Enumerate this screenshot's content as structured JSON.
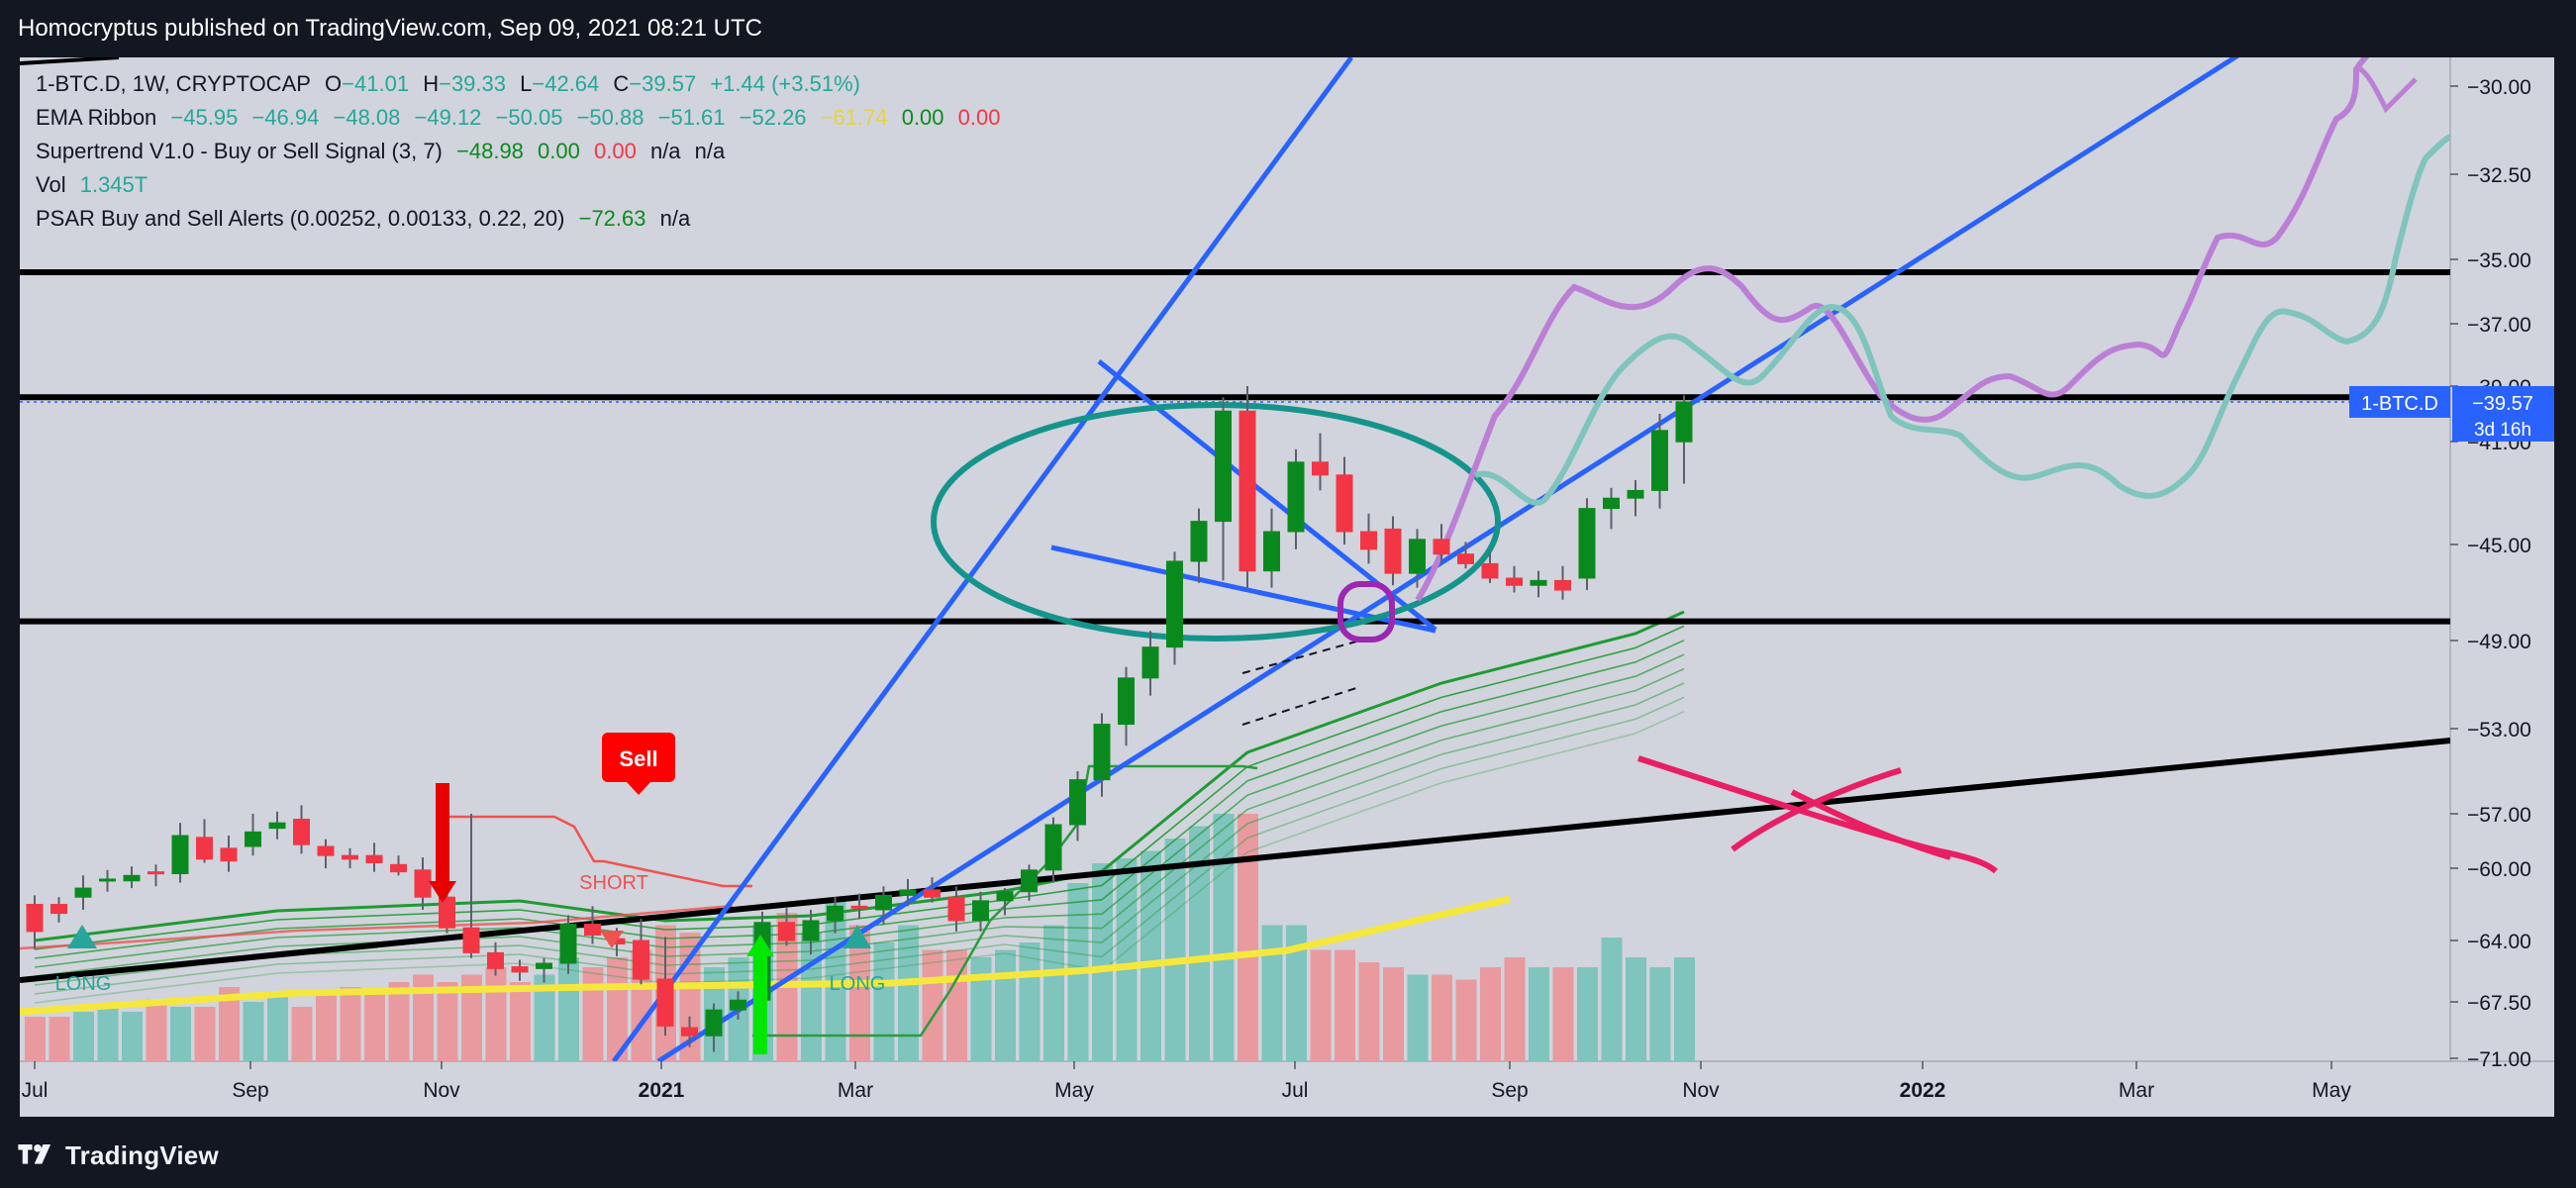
{
  "header": {
    "publisher_text": "Homocryptus published on TradingView.com, Sep 09, 2021 08:21 UTC"
  },
  "footer": {
    "brand": "TradingView"
  },
  "colors": {
    "chart_bg": "#d1d4dc",
    "frame_bg": "#131722",
    "candle_up": "#0a8a1e",
    "candle_down": "#f23645",
    "volume_up": "#7fc4bd",
    "volume_down": "#e89a9f",
    "trendline": "#2962ff",
    "level": "#000000",
    "ellipse": "#15948c",
    "ribbon": "#1f9b32",
    "ema_long": "#f5e83c",
    "projection_purple": "#bb7fd6",
    "projection_teal": "#7fc4bd",
    "cross": "#e91e63",
    "price_label_bg": "#2962ff"
  },
  "legend": {
    "symbol": {
      "name": "1-BTC.D, 1W, CRYPTOCAP",
      "o_label": "O",
      "o": "−41.01",
      "h_label": "H",
      "h": "−39.33",
      "l_label": "L",
      "l": "−42.64",
      "c_label": "C",
      "c": "−39.57",
      "change": "+1.44 (+3.51%)"
    },
    "ema_ribbon": {
      "name": "EMA Ribbon",
      "values": [
        "−45.95",
        "−46.94",
        "−48.08",
        "−49.12",
        "−50.05",
        "−50.88",
        "−51.61",
        "−52.26",
        "−61.74",
        "0.00",
        "0.00"
      ]
    },
    "supertrend": {
      "name": "Supertrend V1.0 - Buy or Sell Signal (3, 7)",
      "v1": "−48.98",
      "v2": "0.00",
      "v3": "0.00",
      "v4": "n/a",
      "v5": "n/a"
    },
    "vol": {
      "name": "Vol",
      "value": "1.345T"
    },
    "psar": {
      "name": "PSAR Buy and Sell Alerts (0.00252, 0.00133, 0.22, 20)",
      "value": "−72.63",
      "extra": "n/a"
    }
  },
  "price_label": {
    "symbol": "1-BTC.D",
    "value": "−39.57",
    "countdown": "3d 16h"
  },
  "annotations": {
    "sell": "Sell",
    "short": "SHORT",
    "long_1": "LONG",
    "long_2": "LONG"
  },
  "chart_data": {
    "type": "candlestick",
    "timeframe": "1W",
    "y_scale": "inverted (negative BTC dominance; more negative values plotted lower)",
    "grid": false,
    "x_ticks": [
      "Jul",
      "Sep",
      "Nov",
      "2021",
      "Mar",
      "May",
      "Jul",
      "Sep",
      "Nov",
      "2022",
      "Mar",
      "May"
    ],
    "y_ticks": [
      "−30.00",
      "−32.50",
      "−35.00",
      "−37.00",
      "−39.00",
      "−41.00",
      "−45.00",
      "−49.00",
      "−53.00",
      "−57.00",
      "−60.00",
      "−64.00",
      "−67.50",
      "−71.00"
    ],
    "candles": [
      {
        "o": -62.0,
        "h": -61.5,
        "l": -64.5,
        "c": -63.5
      },
      {
        "o": -62.0,
        "h": -61.6,
        "l": -63.0,
        "c": -62.5
      },
      {
        "o": -61.6,
        "h": -60.4,
        "l": -62.3,
        "c": -61.1
      },
      {
        "o": -60.7,
        "h": -60.1,
        "l": -61.3,
        "c": -60.6
      },
      {
        "o": -60.7,
        "h": -59.9,
        "l": -61.1,
        "c": -60.4
      },
      {
        "o": -60.2,
        "h": -59.8,
        "l": -61.0,
        "c": -60.3
      },
      {
        "o": -60.3,
        "h": -57.5,
        "l": -60.8,
        "c": -58.2
      },
      {
        "o": -58.3,
        "h": -57.3,
        "l": -59.7,
        "c": -59.5
      },
      {
        "o": -58.9,
        "h": -58.2,
        "l": -60.2,
        "c": -59.6
      },
      {
        "o": -58.8,
        "h": -57.0,
        "l": -59.3,
        "c": -58.0
      },
      {
        "o": -57.8,
        "h": -56.9,
        "l": -58.4,
        "c": -57.5
      },
      {
        "o": -57.3,
        "h": -56.6,
        "l": -59.2,
        "c": -58.7
      },
      {
        "o": -58.8,
        "h": -58.4,
        "l": -60.0,
        "c": -59.3
      },
      {
        "o": -59.3,
        "h": -58.9,
        "l": -60.0,
        "c": -59.5
      },
      {
        "o": -59.3,
        "h": -58.6,
        "l": -60.2,
        "c": -59.7
      },
      {
        "o": -59.8,
        "h": -59.3,
        "l": -60.4,
        "c": -60.2
      },
      {
        "o": -60.1,
        "h": -59.4,
        "l": -62.3,
        "c": -61.6
      },
      {
        "o": -61.6,
        "h": -61.1,
        "l": -63.6,
        "c": -63.3
      },
      {
        "o": -63.3,
        "h": -57.0,
        "l": -65.0,
        "c": -64.7
      },
      {
        "o": -64.7,
        "h": -64.1,
        "l": -66.0,
        "c": -65.6
      },
      {
        "o": -65.5,
        "h": -65.1,
        "l": -66.3,
        "c": -65.8
      },
      {
        "o": -65.6,
        "h": -65.0,
        "l": -66.4,
        "c": -65.3
      },
      {
        "o": -65.3,
        "h": -62.6,
        "l": -65.9,
        "c": -63.1
      },
      {
        "o": -63.1,
        "h": -62.1,
        "l": -64.2,
        "c": -63.7
      },
      {
        "o": -63.9,
        "h": -63.3,
        "l": -64.9,
        "c": -64.2
      },
      {
        "o": -64.0,
        "h": -62.8,
        "l": -66.5,
        "c": -66.2
      },
      {
        "o": -66.2,
        "h": -63.8,
        "l": -69.6,
        "c": -69.0
      },
      {
        "o": -69.1,
        "h": -68.4,
        "l": -70.3,
        "c": -69.6
      },
      {
        "o": -69.6,
        "h": -67.6,
        "l": -70.6,
        "c": -68.0
      },
      {
        "o": -68.0,
        "h": -66.9,
        "l": -68.6,
        "c": -67.4
      },
      {
        "o": -67.4,
        "h": -62.4,
        "l": -68.2,
        "c": -63.0
      },
      {
        "o": -63.0,
        "h": -62.2,
        "l": -64.3,
        "c": -64.0
      },
      {
        "o": -64.0,
        "h": -62.3,
        "l": -64.8,
        "c": -62.9
      },
      {
        "o": -62.9,
        "h": -61.6,
        "l": -63.6,
        "c": -62.1
      },
      {
        "o": -62.1,
        "h": -61.4,
        "l": -62.8,
        "c": -62.2
      },
      {
        "o": -62.3,
        "h": -61.0,
        "l": -63.1,
        "c": -61.5
      },
      {
        "o": -61.5,
        "h": -60.6,
        "l": -62.1,
        "c": -61.2
      },
      {
        "o": -61.2,
        "h": -60.5,
        "l": -61.9,
        "c": -61.6
      },
      {
        "o": -61.6,
        "h": -61.0,
        "l": -63.5,
        "c": -62.9
      },
      {
        "o": -62.9,
        "h": -61.3,
        "l": -63.5,
        "c": -61.8
      },
      {
        "o": -61.8,
        "h": -61.1,
        "l": -62.6,
        "c": -61.3
      },
      {
        "o": -61.3,
        "h": -59.8,
        "l": -61.8,
        "c": -60.1
      },
      {
        "o": -60.1,
        "h": -57.2,
        "l": -60.8,
        "c": -57.6
      },
      {
        "o": -57.6,
        "h": -55.0,
        "l": -58.5,
        "c": -55.4
      },
      {
        "o": -55.4,
        "h": -52.3,
        "l": -56.2,
        "c": -52.8
      },
      {
        "o": -52.8,
        "h": -50.2,
        "l": -53.8,
        "c": -50.7
      },
      {
        "o": -50.7,
        "h": -48.6,
        "l": -51.5,
        "c": -49.3
      },
      {
        "o": -49.3,
        "h": -45.3,
        "l": -50.1,
        "c": -45.7
      },
      {
        "o": -45.7,
        "h": -43.6,
        "l": -46.6,
        "c": -44.1
      },
      {
        "o": -44.1,
        "h": -39.4,
        "l": -46.5,
        "c": -39.9
      },
      {
        "o": -39.9,
        "h": -39.0,
        "l": -46.8,
        "c": -46.1
      },
      {
        "o": -46.1,
        "h": -43.6,
        "l": -46.8,
        "c": -44.5
      },
      {
        "o": -44.5,
        "h": -41.3,
        "l": -45.2,
        "c": -41.8
      },
      {
        "o": -41.8,
        "h": -40.7,
        "l": -42.9,
        "c": -42.3
      },
      {
        "o": -42.3,
        "h": -41.6,
        "l": -45.0,
        "c": -44.5
      },
      {
        "o": -44.5,
        "h": -43.8,
        "l": -45.8,
        "c": -45.2
      },
      {
        "o": -44.4,
        "h": -43.9,
        "l": -46.7,
        "c": -46.2
      },
      {
        "o": -46.2,
        "h": -44.4,
        "l": -46.8,
        "c": -44.8
      },
      {
        "o": -44.8,
        "h": -44.2,
        "l": -45.8,
        "c": -45.4
      },
      {
        "o": -45.4,
        "h": -44.9,
        "l": -46.0,
        "c": -45.8
      },
      {
        "o": -45.8,
        "h": -45.3,
        "l": -46.6,
        "c": -46.4
      },
      {
        "o": -46.4,
        "h": -45.9,
        "l": -47.0,
        "c": -46.7
      },
      {
        "o": -46.7,
        "h": -46.1,
        "l": -47.2,
        "c": -46.5
      },
      {
        "o": -46.5,
        "h": -45.9,
        "l": -47.3,
        "c": -46.9
      },
      {
        "o": -46.4,
        "h": -43.2,
        "l": -46.9,
        "c": -43.6
      },
      {
        "o": -43.6,
        "h": -42.8,
        "l": -44.4,
        "c": -43.2
      },
      {
        "o": -43.2,
        "h": -42.5,
        "l": -43.9,
        "c": -42.9
      },
      {
        "o": -42.9,
        "h": -40.0,
        "l": -43.6,
        "c": -40.6
      },
      {
        "o": -41.01,
        "h": -39.33,
        "l": -42.64,
        "c": -39.57
      }
    ],
    "volume": [
      0.18,
      0.18,
      0.2,
      0.22,
      0.2,
      0.25,
      0.22,
      0.22,
      0.3,
      0.24,
      0.28,
      0.22,
      0.28,
      0.3,
      0.28,
      0.32,
      0.35,
      0.32,
      0.35,
      0.38,
      0.32,
      0.35,
      0.42,
      0.38,
      0.42,
      0.45,
      0.55,
      0.52,
      0.38,
      0.42,
      0.55,
      0.6,
      0.52,
      0.65,
      0.55,
      0.48,
      0.55,
      0.45,
      0.45,
      0.42,
      0.45,
      0.48,
      0.55,
      0.72,
      0.8,
      0.82,
      0.85,
      0.9,
      0.95,
      1.0,
      1.0,
      0.55,
      0.55,
      0.45,
      0.45,
      0.4,
      0.38,
      0.35,
      0.35,
      0.33,
      0.38,
      0.42,
      0.38,
      0.38,
      0.38,
      0.5,
      0.42,
      0.38,
      0.42
    ],
    "horizontal_levels": [
      -35.4,
      -39.4,
      -48.2
    ],
    "price_last": -39.57
  }
}
